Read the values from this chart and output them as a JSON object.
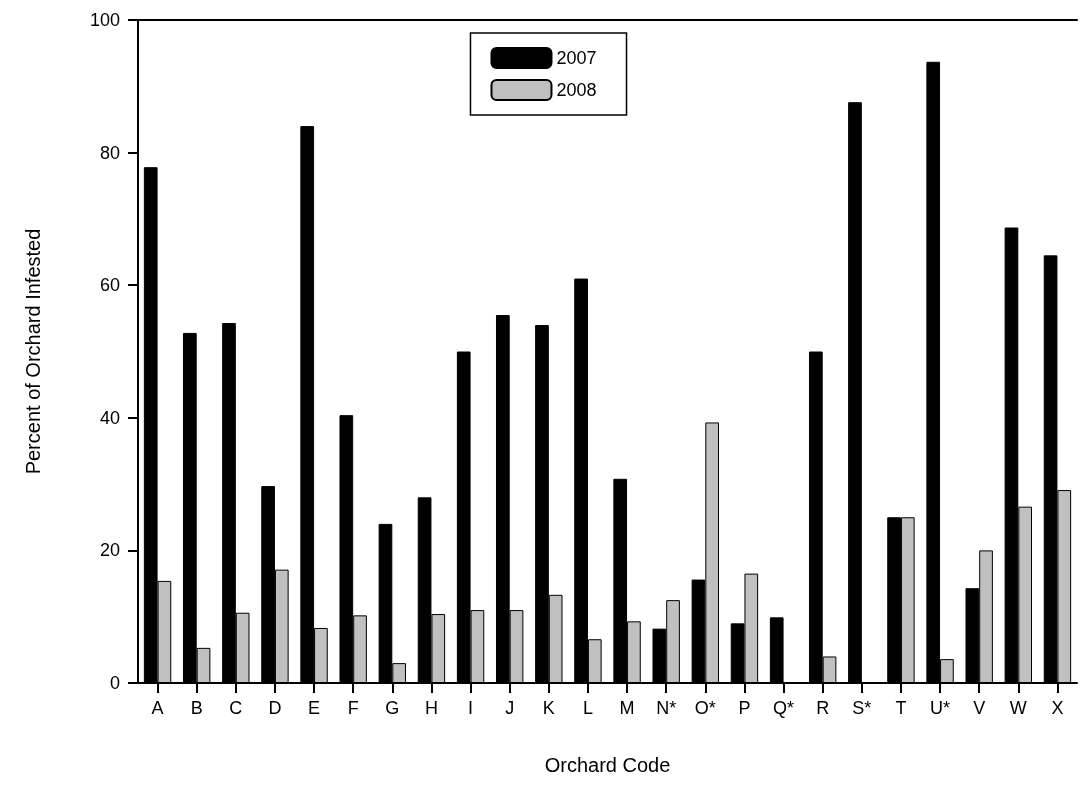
{
  "chart_data": {
    "type": "bar",
    "xlabel": "Orchard Code",
    "ylabel": "Percent of Orchard Infested",
    "categories": [
      "A",
      "B",
      "C",
      "D",
      "E",
      "F",
      "G",
      "H",
      "I",
      "J",
      "K",
      "L",
      "M",
      "N*",
      "O*",
      "P",
      "Q*",
      "R",
      "S*",
      "T",
      "U*",
      "V",
      "W",
      "X"
    ],
    "series": [
      {
        "name": "2007",
        "color": "#000000",
        "values": [
          77.8,
          52.8,
          54.3,
          29.7,
          84,
          40.4,
          24,
          28,
          50,
          55.5,
          54,
          61,
          30.8,
          8.2,
          15.6,
          9,
          9.9,
          50,
          87.6,
          25,
          93.7,
          14.3,
          68.7,
          64.5
        ]
      },
      {
        "name": "2008",
        "color": "#c0c0c0",
        "values": [
          15.4,
          5.3,
          10.6,
          17.1,
          8.3,
          10.2,
          3,
          10.4,
          11,
          11,
          13.3,
          6.6,
          9.3,
          12.5,
          39.3,
          16.5,
          null,
          4,
          null,
          25,
          3.6,
          20,
          26.6,
          29.1
        ]
      }
    ],
    "ylim": [
      0,
      100
    ],
    "yticks": [
      0,
      20,
      40,
      60,
      80,
      100
    ],
    "grid": false,
    "legend": "top"
  }
}
